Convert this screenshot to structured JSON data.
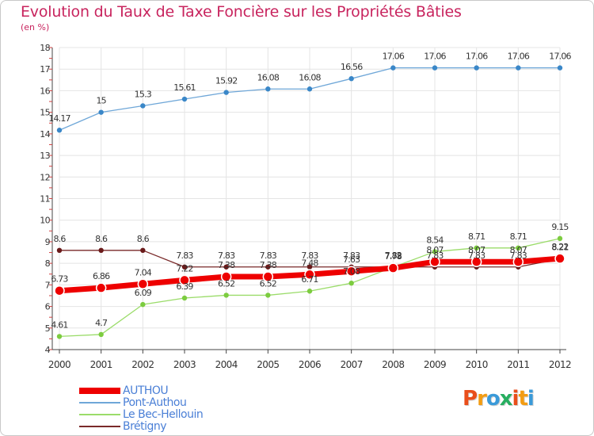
{
  "header": {
    "title": "Evolution du Taux de Taxe Foncière sur les Propriétés Bâties",
    "unit": "(en %)"
  },
  "logo": {
    "letters": [
      "P",
      "r",
      "o",
      "x",
      "i",
      "t",
      "i"
    ],
    "colors": [
      "#e94e1b",
      "#f39c12",
      "#3a9ad9",
      "#27ae60",
      "#e94e1b",
      "#f39c12",
      "#3a9ad9"
    ]
  },
  "chart_data": {
    "type": "line",
    "title": "Evolution du Taux de Taxe Foncière sur les Propriétés Bâties",
    "ylabel": "(en %)",
    "xlabel": "",
    "x": [
      2000,
      2001,
      2002,
      2003,
      2004,
      2005,
      2006,
      2007,
      2008,
      2009,
      2010,
      2011,
      2012
    ],
    "ylim": [
      4,
      18
    ],
    "yticks": [
      4,
      5,
      6,
      7,
      8,
      9,
      10,
      11,
      12,
      13,
      14,
      15,
      16,
      17,
      18
    ],
    "grid": true,
    "legend_position": "bottom-left",
    "series": [
      {
        "name": "AUTHOU",
        "color": "#ee0000",
        "markerColor": "#ee0000",
        "width": 7,
        "values": [
          6.73,
          6.86,
          7.04,
          7.22,
          7.38,
          7.38,
          7.48,
          7.63,
          7.78,
          8.07,
          8.07,
          8.07,
          8.22
        ],
        "labels": [
          "6.73",
          "6.86",
          "7.04",
          "7.22",
          "7.38",
          "7.38",
          "7.48",
          "7.63",
          "7.78",
          "8.07",
          "8.07",
          "8.07",
          "8.22"
        ]
      },
      {
        "name": "Pont-Authou",
        "color": "#6fa7d8",
        "markerColor": "#3a87c8",
        "width": 1.3,
        "values": [
          14.17,
          15,
          15.3,
          15.61,
          15.92,
          16.08,
          16.08,
          16.56,
          17.06,
          17.06,
          17.06,
          17.06,
          17.06
        ],
        "labels": [
          "14.17",
          "15",
          "15.3",
          "15.61",
          "15.92",
          "16.08",
          "16.08",
          "16.56",
          "17.06",
          "17.06",
          "17.06",
          "17.06",
          "17.06"
        ]
      },
      {
        "name": "Le Bec-Hellouin",
        "color": "#9bdc6a",
        "markerColor": "#7ccc3f",
        "width": 1.3,
        "values": [
          4.61,
          4.7,
          6.09,
          6.39,
          6.52,
          6.52,
          6.71,
          7.08,
          7.82,
          8.54,
          8.71,
          8.71,
          9.15
        ],
        "labels": [
          "4.61",
          "4.7",
          "6.09",
          "6.39",
          "6.52",
          "6.52",
          "6.71",
          "7.08",
          "7.82",
          "8.54",
          "8.71",
          "8.71",
          "9.15"
        ]
      },
      {
        "name": "Brétigny",
        "color": "#7a2a2a",
        "markerColor": "#6a1a1a",
        "width": 1.3,
        "values": [
          8.6,
          8.6,
          8.6,
          7.83,
          7.83,
          7.83,
          7.83,
          7.83,
          7.83,
          7.83,
          7.83,
          7.83,
          8.21
        ],
        "labels": [
          "8.6",
          "8.6",
          "8.6",
          "7.83",
          "7.83",
          "7.83",
          "7.83",
          "7.83",
          "7.83",
          "7.83",
          "7.83",
          "7.83",
          "8.21"
        ]
      }
    ]
  }
}
